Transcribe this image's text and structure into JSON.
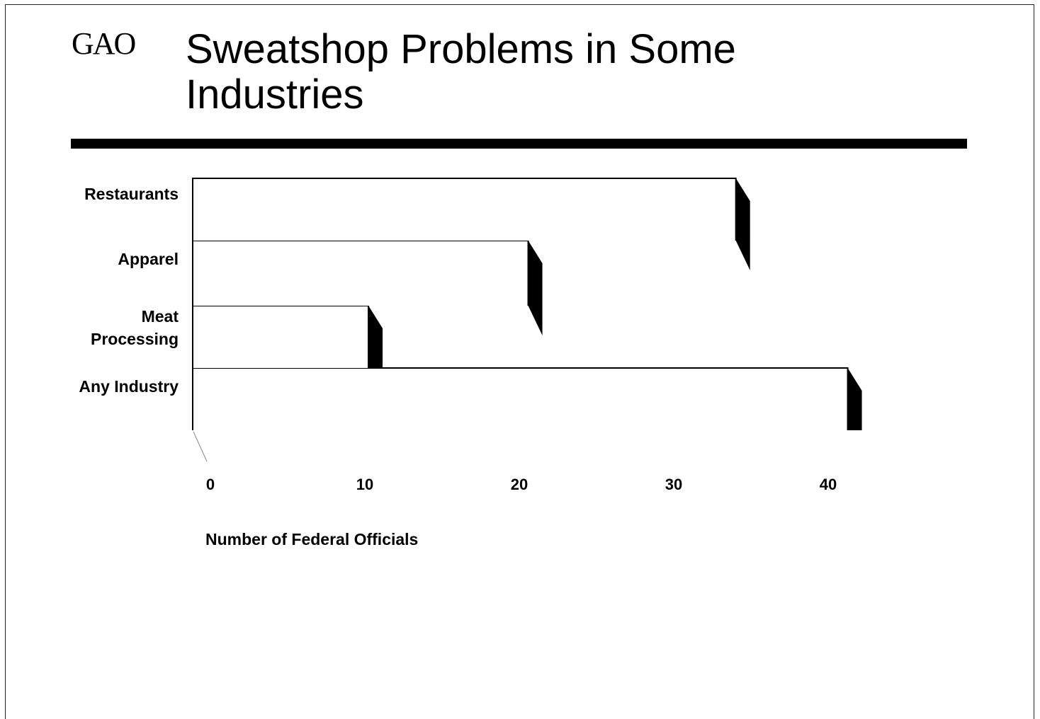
{
  "header": {
    "logo": "GAO",
    "title_line1": "Sweatshop Problems in Some",
    "title_line2": "Industries"
  },
  "chart_data": {
    "type": "bar",
    "orientation": "horizontal",
    "title": "Sweatshop Problems in Some Industries",
    "categories": [
      "Restaurants",
      "Apparel",
      "Meat Processing",
      "Any Industry"
    ],
    "category_lines": [
      [
        "Restaurants"
      ],
      [
        "Apparel"
      ],
      [
        "Meat",
        "Processing"
      ],
      [
        "Any Industry"
      ]
    ],
    "values": [
      34,
      21,
      11,
      41
    ],
    "xlabel": "Number of Federal Officials",
    "ylabel": "",
    "xlim": [
      0,
      40
    ],
    "xticks": [
      0,
      10,
      20,
      30,
      40
    ],
    "grid": false,
    "style": "3d-shadow",
    "colors": {
      "bar_face": "#ffffff",
      "bar_edge": "#000000",
      "shadow": "#000000"
    }
  }
}
